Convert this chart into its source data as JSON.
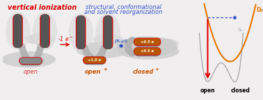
{
  "bg_color": "#f0eeee",
  "title_left": "vertical ionization",
  "title_right_1": "structural, conformational",
  "title_right_2": "and solvent reorganization",
  "title_left_color": "#dd0000",
  "title_right_color": "#3355cc",
  "label_open": "open",
  "label_open_color": "#dd3333",
  "label_openplus": "open",
  "label_openplus_sup": "+",
  "label_openplus_color": "#cc5500",
  "label_closedplus": "closed",
  "label_closedplus_sup": "+",
  "label_closedplus_color": "#cc5500",
  "arrow_minus1e_color": "#dd0000",
  "arrow_psus_color": "#2244bb",
  "charge_color": "#ffffff",
  "body_red": "#cc1111",
  "body_dark": "#555555",
  "body_orange": "#b85500",
  "connector_color": "#bbbbbb",
  "shadow_color": "#cccccc",
  "curve_orange": "#e87500",
  "curve_gray": "#aaaaaa",
  "vertical_arrow_color": "#dd0000",
  "dashed_color": "#3355cc",
  "dot_color": "#3355cc",
  "D0_color": "#e87500",
  "S0_color": "#aaaaaa",
  "open_label_color": "#000000",
  "closed_label_color": "#000000"
}
